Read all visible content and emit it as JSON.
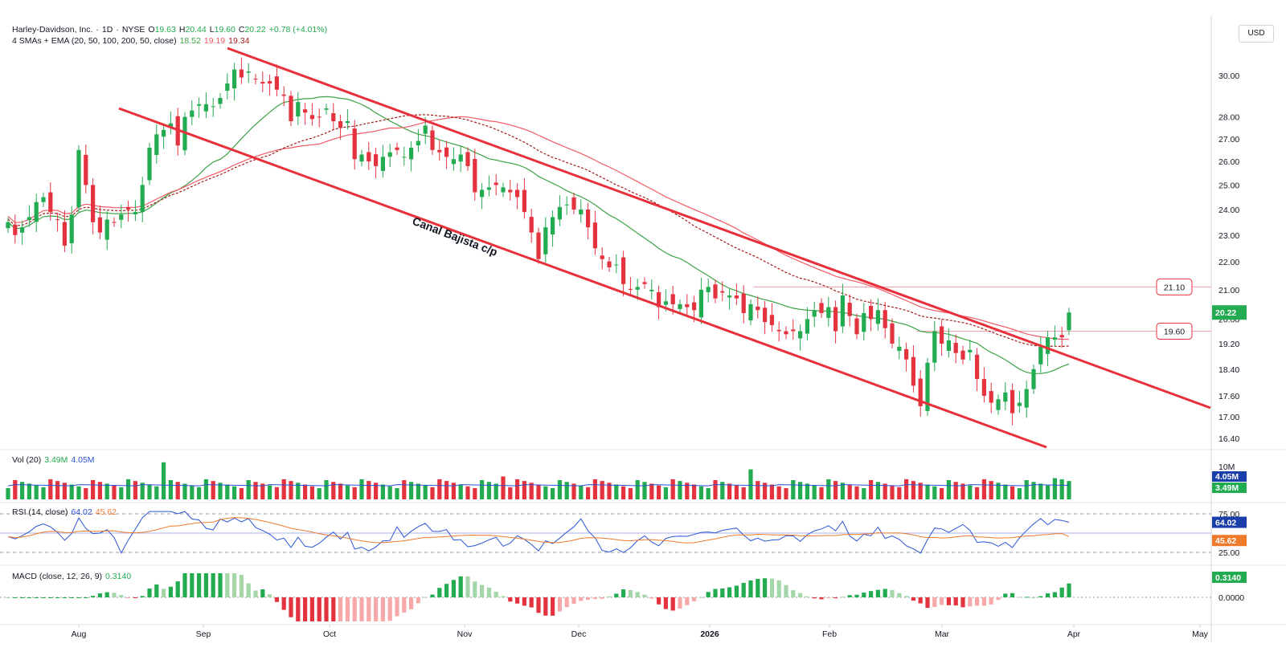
{
  "header": {
    "symbol_line": {
      "name": "Harley-Davidson, Inc.",
      "sep1": "·",
      "interval": "1D",
      "sep2": "·",
      "exchange": "NYSE",
      "open_label": "O",
      "open": "19.63",
      "high_label": "H",
      "high": "20.44",
      "low_label": "L",
      "low": "19.60",
      "close_label": "C",
      "close": "20.22",
      "change": "+0.78 (+4.01%)"
    },
    "ma_line": {
      "label": "4 SMAs + EMA (20, 50, 100, 200, 50, close)",
      "v1": "18.52",
      "v2": "19.19",
      "v3": "19.34"
    }
  },
  "currency": "USD",
  "colors": {
    "up": "#22ab50",
    "down": "#e5323f",
    "sma20": "#3da245",
    "sma50": "#f15a64",
    "ema50": "#a11d1d",
    "channel": "#e8303a",
    "rsi": "#2b53d6",
    "rsi_ma": "#f07a2b",
    "vol_ma": "#2b53d6"
  },
  "price_axis": {
    "ticks": [
      "30.00",
      "28.00",
      "27.00",
      "26.00",
      "25.00",
      "24.00",
      "23.00",
      "22.00",
      "21.00",
      "20.00",
      "19.20",
      "18.40",
      "17.60",
      "17.00",
      "16.40"
    ],
    "scale": "log"
  },
  "time_axis": {
    "labels": [
      "Aug",
      "Sep",
      "Oct",
      "Nov",
      "Dec",
      "2026",
      "Feb",
      "Mar",
      "Apr",
      "May"
    ]
  },
  "price_labels": {
    "last": "20.22",
    "level_upper": "21.10",
    "level_lower": "19.60"
  },
  "annotation": "Canal Bajista c/p",
  "volume": {
    "label": "Vol (20)",
    "v_green": "3.49M",
    "v_blue": "4.05M",
    "axis_tick": "10M",
    "last": "3.49M",
    "ma": "4.05M"
  },
  "rsi": {
    "label": "RSI (14, close)",
    "value": "64.02",
    "ma": "45.62",
    "ticks": [
      "75.00",
      "25.00"
    ],
    "last": "64.02",
    "ma_label": "45.62"
  },
  "macd": {
    "label": "MACD (close, 12, 26, 9)",
    "value": "0.3140",
    "ticks": [
      "0.0000"
    ],
    "last": "0.3140"
  },
  "chart_data": {
    "type": "candlestick",
    "levels": {
      "horizontal": [
        21.1,
        19.6
      ]
    },
    "candles_close_approx": [
      23.5,
      23.0,
      23.3,
      23.7,
      24.3,
      24.5,
      23.9,
      23.6,
      22.6,
      23.8,
      26.5,
      25.0,
      23.5,
      23.1,
      23.6,
      23.5,
      23.8,
      24.0,
      23.9,
      25.0,
      26.6,
      27.2,
      27.4,
      27.7,
      26.7,
      28.0,
      28.3,
      28.6,
      28.6,
      28.5,
      28.9,
      29.6,
      30.3,
      29.9,
      30.2,
      29.8,
      29.6,
      29.6,
      29.3,
      29.0,
      27.8,
      28.7,
      28.2,
      27.9,
      28.0,
      28.4,
      27.8,
      27.5,
      27.8,
      26.1,
      26.3,
      26.0,
      25.8,
      26.2,
      26.4,
      26.5,
      26.2,
      26.6,
      26.9,
      27.6,
      26.5,
      26.4,
      26.2,
      26.1,
      26.3,
      25.8,
      24.7,
      24.8,
      24.9,
      25.0,
      24.9,
      24.7,
      24.5,
      23.9,
      23.1,
      22.1,
      23.3,
      23.7,
      24.1,
      24.2,
      24.0,
      24.0,
      23.3,
      22.5,
      22.1,
      21.8,
      21.9,
      21.2,
      21.0,
      21.1,
      21.2,
      21.0,
      20.4,
      20.6,
      20.5,
      20.5,
      20.4,
      20.3,
      21.0,
      21.1,
      20.7,
      20.9,
      20.8,
      20.7,
      20.2,
      20.5,
      20.3,
      19.9,
      19.8,
      19.6,
      19.5,
      19.6,
      19.6,
      20.0,
      20.3,
      20.2,
      20.4,
      19.6,
      20.8,
      20.1,
      19.5,
      20.2,
      20.0,
      20.3,
      19.7,
      19.2,
      19.1,
      18.7,
      17.9,
      17.3,
      18.6,
      19.6,
      19.2,
      19.3,
      18.9,
      18.7,
      19.0,
      18.1,
      17.6,
      17.4,
      17.5,
      17.7,
      17.1,
      17.4,
      17.8,
      18.4,
      19.1,
      19.4,
      19.4,
      19.4,
      20.22
    ],
    "volume_ma": 4.05,
    "rsi_last": 64.02,
    "rsi_ma_last": 45.62,
    "macd_last": 0.314
  }
}
